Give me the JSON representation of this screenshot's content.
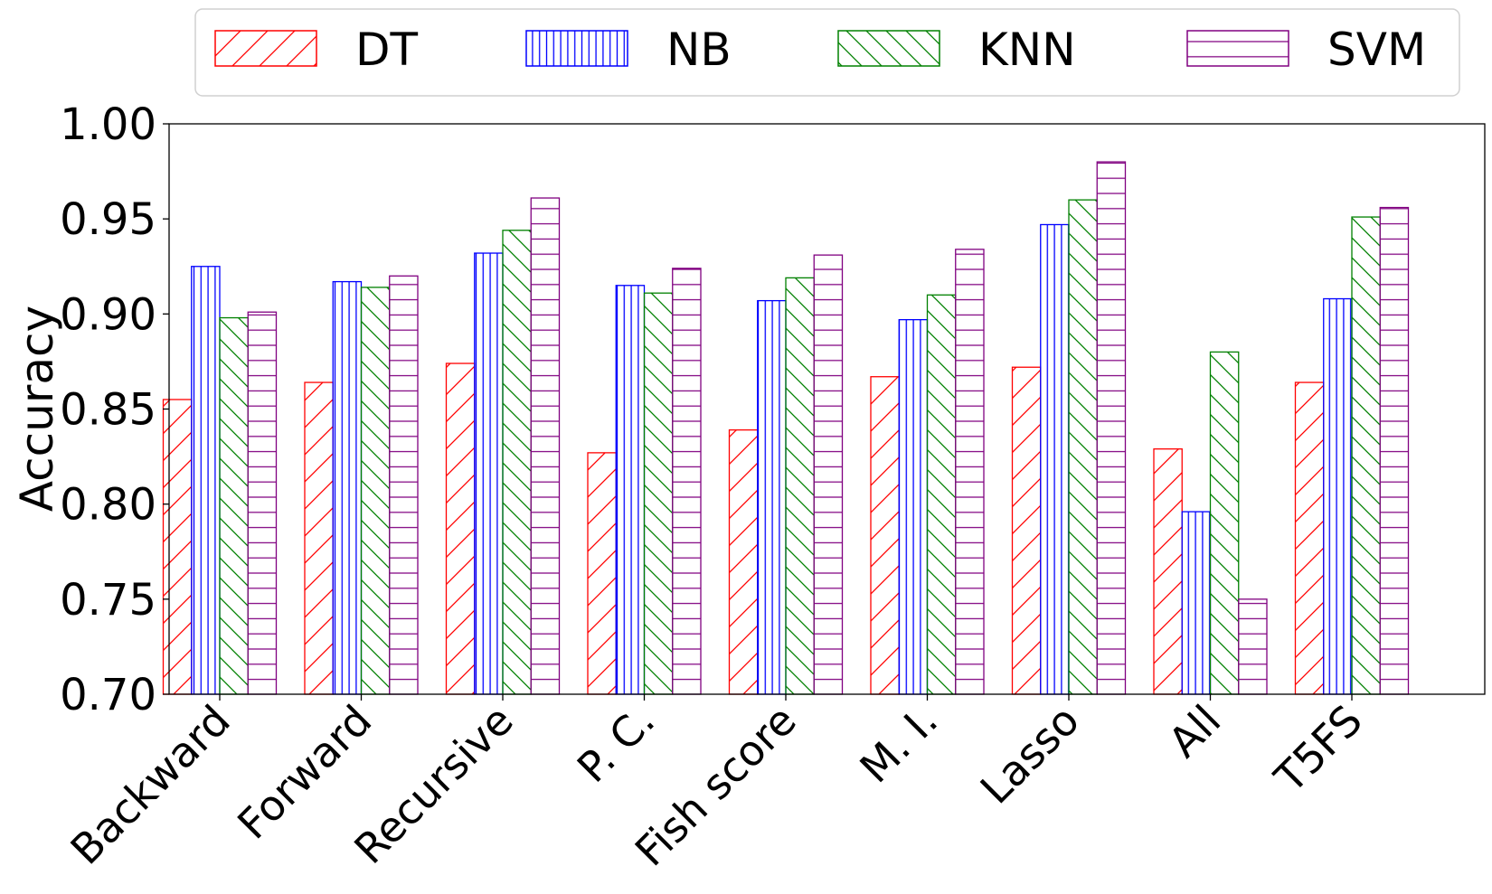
{
  "chart_data": {
    "type": "bar",
    "title": "",
    "xlabel": "",
    "ylabel": "Accuracy",
    "ylim": [
      0.7,
      1.0
    ],
    "yticks": [
      "0.70",
      "0.75",
      "0.80",
      "0.85",
      "0.90",
      "0.95",
      "1.00"
    ],
    "grid": false,
    "legend_position": "top",
    "categories": [
      "Backward",
      "Forward",
      "Recursive",
      "P. C.",
      "Fish score",
      "M. I.",
      "Lasso",
      "All",
      "T5FS"
    ],
    "series": [
      {
        "name": "DT",
        "color": "#ff0000",
        "hatch": "forward-diagonal",
        "values": [
          0.855,
          0.864,
          0.874,
          0.827,
          0.839,
          0.867,
          0.872,
          0.829,
          0.864
        ]
      },
      {
        "name": "NB",
        "color": "#0000ff",
        "hatch": "vertical",
        "values": [
          0.925,
          0.917,
          0.932,
          0.915,
          0.907,
          0.897,
          0.947,
          0.796,
          0.908
        ]
      },
      {
        "name": "KNN",
        "color": "#008000",
        "hatch": "back-diagonal",
        "values": [
          0.898,
          0.914,
          0.944,
          0.911,
          0.919,
          0.91,
          0.96,
          0.88,
          0.951
        ]
      },
      {
        "name": "SVM",
        "color": "#800080",
        "hatch": "horizontal",
        "values": [
          0.901,
          0.92,
          0.961,
          0.924,
          0.931,
          0.934,
          0.98,
          0.75,
          0.956
        ]
      }
    ]
  }
}
